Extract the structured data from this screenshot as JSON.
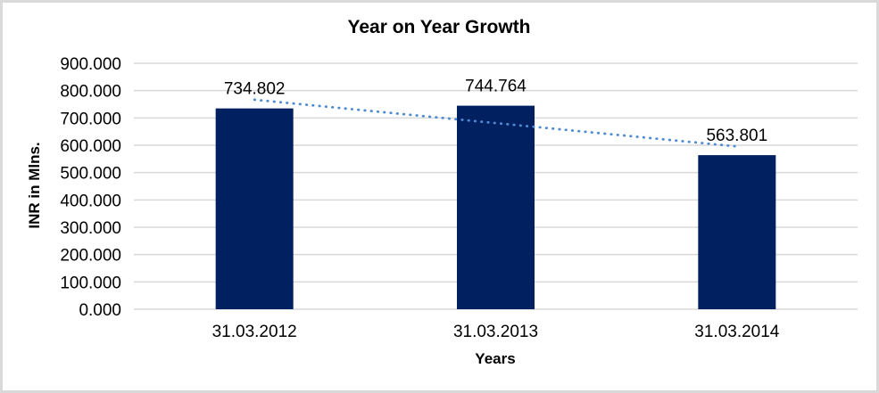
{
  "chart_data": {
    "type": "bar",
    "title": "Year on Year Growth",
    "xlabel": "Years",
    "ylabel": "INR in Mlns.",
    "categories": [
      "31.03.2012",
      "31.03.2013",
      "31.03.2014"
    ],
    "values": [
      734.802,
      744.764,
      563.801
    ],
    "value_labels": [
      "734.802",
      "744.764",
      "563.801"
    ],
    "ylim": [
      0,
      900
    ],
    "ytick_step": 100,
    "ytick_labels": [
      "0.000",
      "100.000",
      "200.000",
      "300.000",
      "400.000",
      "500.000",
      "600.000",
      "700.000",
      "800.000",
      "900.000"
    ],
    "grid": true,
    "legend": "none",
    "colors": {
      "bar": "#002060",
      "gridline": "#d9d9d9",
      "trendline": "#4e8ad4",
      "text": "#000000",
      "frame_border": "#d9d9d9"
    },
    "trendline": {
      "kind": "linear",
      "style": "dotted"
    }
  }
}
